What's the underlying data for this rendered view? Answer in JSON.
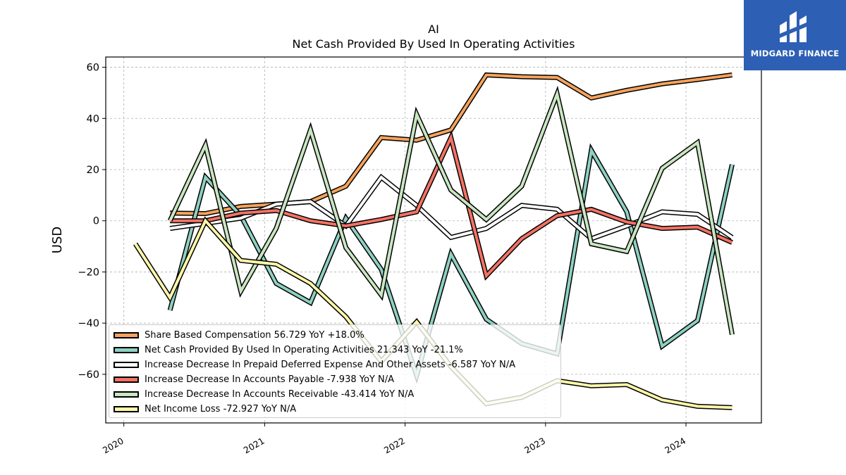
{
  "brand": {
    "name": "MIDGARD FINANCE",
    "bg": "#2d5fb4"
  },
  "chart_data": {
    "type": "line",
    "title": "AI",
    "subtitle": "Net Cash Provided By Used In Operating Activities",
    "ylabel": "USD",
    "xlabel": "",
    "ylim": [
      -79,
      64
    ],
    "xlim": [
      "2019-11-15",
      "2024-07-15"
    ],
    "yticks": [
      60,
      40,
      20,
      0,
      -20,
      -40,
      -60
    ],
    "xticks": [
      "2020",
      "2021",
      "2022",
      "2023",
      "2024"
    ],
    "grid": true,
    "legend_position": "lower-left",
    "series": [
      {
        "name": "Share Based Compensation",
        "legend": "Share Based Compensation  56.729 YoY +18.0%",
        "color": "#f6a35c",
        "points": [
          [
            "2020-04-30",
            3.0
          ],
          [
            "2020-07-31",
            2.8
          ],
          [
            "2020-10-31",
            5.6
          ],
          [
            "2021-01-31",
            6.5
          ],
          [
            "2021-04-30",
            7.5
          ],
          [
            "2021-07-31",
            13.5
          ],
          [
            "2021-10-31",
            32.5
          ],
          [
            "2022-01-31",
            31.5
          ],
          [
            "2022-04-30",
            35.5
          ],
          [
            "2022-07-31",
            57.0
          ],
          [
            "2022-10-31",
            56.3
          ],
          [
            "2023-01-31",
            56.0
          ],
          [
            "2023-04-30",
            48.0
          ],
          [
            "2023-07-31",
            51.0
          ],
          [
            "2023-10-31",
            53.5
          ],
          [
            "2024-01-31",
            55.2
          ],
          [
            "2024-04-30",
            57.0
          ]
        ]
      },
      {
        "name": "Net Cash Provided By Used In Operating Activities",
        "legend": "Net Cash Provided By Used In Operating Activities  21.343 YoY -21.1%",
        "color": "#8ed0c2",
        "points": [
          [
            "2020-04-30",
            -35.0
          ],
          [
            "2020-07-31",
            17.0
          ],
          [
            "2020-10-31",
            2.0
          ],
          [
            "2021-01-31",
            -24.5
          ],
          [
            "2021-04-30",
            -32.0
          ],
          [
            "2021-07-31",
            1.0
          ],
          [
            "2021-10-31",
            -19.0
          ],
          [
            "2022-01-31",
            -60.5
          ],
          [
            "2022-04-30",
            -13.0
          ],
          [
            "2022-07-31",
            -38.5
          ],
          [
            "2022-10-31",
            -48.0
          ],
          [
            "2023-01-31",
            -52.0
          ],
          [
            "2023-04-30",
            27.5
          ],
          [
            "2023-07-31",
            3.5
          ],
          [
            "2023-10-31",
            -49.0
          ],
          [
            "2024-01-31",
            -39.0
          ],
          [
            "2024-04-30",
            22.0
          ]
        ]
      },
      {
        "name": "Increase Decrease In Prepaid Deferred Expense And Other Assets",
        "legend": "Increase Decrease In Prepaid Deferred Expense And Other Assets  -6.587 YoY N/A",
        "color": "#ffffff",
        "points": [
          [
            "2020-04-30",
            -3.0
          ],
          [
            "2020-07-31",
            -1.0
          ],
          [
            "2020-10-31",
            1.0
          ],
          [
            "2021-01-31",
            6.5
          ],
          [
            "2021-04-30",
            7.5
          ],
          [
            "2021-07-31",
            -2.0
          ],
          [
            "2021-10-31",
            17.0
          ],
          [
            "2022-01-31",
            6.0
          ],
          [
            "2022-04-30",
            -6.5
          ],
          [
            "2022-07-31",
            -3.0
          ],
          [
            "2022-10-31",
            6.0
          ],
          [
            "2023-01-31",
            4.5
          ],
          [
            "2023-04-30",
            -7.0
          ],
          [
            "2023-07-31",
            -2.0
          ],
          [
            "2023-10-31",
            3.5
          ],
          [
            "2024-01-31",
            2.5
          ],
          [
            "2024-04-30",
            -6.5
          ]
        ]
      },
      {
        "name": "Increase Decrease In Accounts Payable",
        "legend": "Increase Decrease In Accounts Payable  -7.938 YoY N/A",
        "color": "#f47264",
        "points": [
          [
            "2020-04-30",
            0.0
          ],
          [
            "2020-07-31",
            0.0
          ],
          [
            "2020-10-31",
            3.0
          ],
          [
            "2021-01-31",
            4.0
          ],
          [
            "2021-04-30",
            0.0
          ],
          [
            "2021-07-31",
            -2.0
          ],
          [
            "2021-10-31",
            0.5
          ],
          [
            "2022-01-31",
            3.5
          ],
          [
            "2022-04-30",
            32.5
          ],
          [
            "2022-07-31",
            -21.5
          ],
          [
            "2022-10-31",
            -7.0
          ],
          [
            "2023-01-31",
            2.0
          ],
          [
            "2023-04-30",
            4.5
          ],
          [
            "2023-07-31",
            -0.5
          ],
          [
            "2023-10-31",
            -3.0
          ],
          [
            "2024-01-31",
            -2.5
          ],
          [
            "2024-04-30",
            -8.5
          ]
        ]
      },
      {
        "name": "Increase Decrease In Accounts Receivable",
        "legend": "Increase Decrease In Accounts Receivable  -43.414 YoY N/A",
        "color": "#c9e6c1",
        "points": [
          [
            "2020-04-30",
            0.0
          ],
          [
            "2020-07-31",
            29.5
          ],
          [
            "2020-10-31",
            -27.5
          ],
          [
            "2021-01-31",
            -3.0
          ],
          [
            "2021-04-30",
            35.5
          ],
          [
            "2021-07-31",
            -10.5
          ],
          [
            "2021-10-31",
            -29.0
          ],
          [
            "2022-01-31",
            41.5
          ],
          [
            "2022-04-30",
            12.0
          ],
          [
            "2022-07-31",
            0.5
          ],
          [
            "2022-10-31",
            13.5
          ],
          [
            "2023-01-31",
            49.5
          ],
          [
            "2023-04-30",
            -9.0
          ],
          [
            "2023-07-31",
            -12.0
          ],
          [
            "2023-10-31",
            20.5
          ],
          [
            "2024-01-31",
            30.5
          ],
          [
            "2024-04-30",
            -44.5
          ]
        ]
      },
      {
        "name": "Net Income Loss",
        "legend": "Net Income Loss  -72.927 YoY N/A",
        "color": "#fdf7a8",
        "points": [
          [
            "2020-01-31",
            -9.0
          ],
          [
            "2020-04-30",
            -30.0
          ],
          [
            "2020-07-31",
            0.0
          ],
          [
            "2020-10-31",
            -15.5
          ],
          [
            "2021-01-31",
            -17.0
          ],
          [
            "2021-04-30",
            -24.5
          ],
          [
            "2021-07-31",
            -37.5
          ],
          [
            "2021-10-31",
            -55.0
          ],
          [
            "2022-01-31",
            -39.5
          ],
          [
            "2022-04-30",
            -57.0
          ],
          [
            "2022-07-31",
            -71.5
          ],
          [
            "2022-10-31",
            -69.0
          ],
          [
            "2023-01-31",
            -62.5
          ],
          [
            "2023-04-30",
            -64.5
          ],
          [
            "2023-07-31",
            -64.0
          ],
          [
            "2023-10-31",
            -70.0
          ],
          [
            "2024-01-31",
            -72.5
          ],
          [
            "2024-04-30",
            -73.0
          ]
        ]
      }
    ]
  }
}
